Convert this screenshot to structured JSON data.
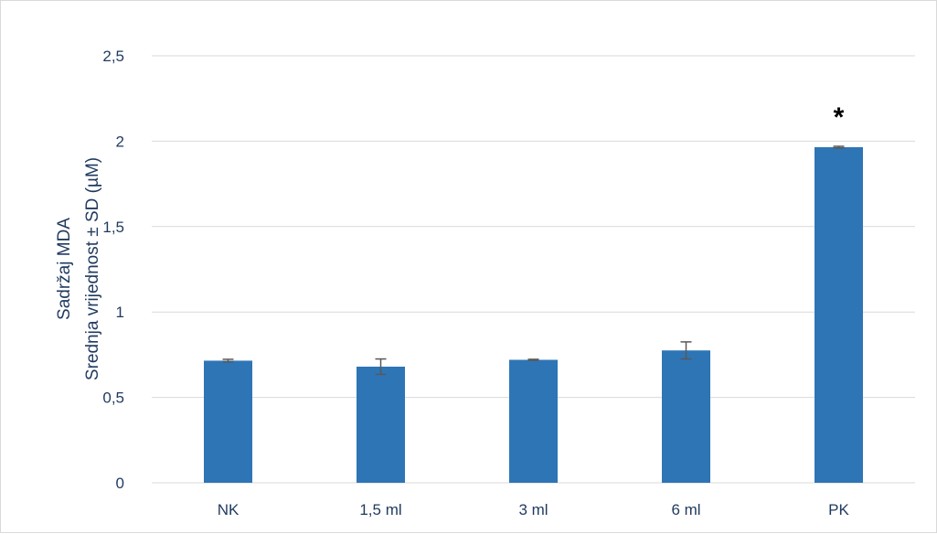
{
  "chart_data": {
    "type": "bar",
    "title": "",
    "xlabel": "",
    "ylabel_lines": [
      "Sadržaj MDA",
      "Srednja vrijednost ± SD (µM)"
    ],
    "categories": [
      "NK",
      "1,5 ml",
      "3 ml",
      "6 ml",
      "PK"
    ],
    "values": [
      0.715,
      0.68,
      0.72,
      0.775,
      1.965
    ],
    "errors": [
      0.008,
      0.045,
      0.003,
      0.05,
      0.005
    ],
    "ylim": [
      0,
      2.5
    ],
    "yticks": [
      0,
      0.5,
      1,
      1.5,
      2,
      2.5
    ],
    "ytick_labels": [
      "0",
      "0,5",
      "1",
      "1,5",
      "2",
      "2,5"
    ],
    "grid": true,
    "legend": "none",
    "annotations": [
      {
        "category": "PK",
        "text": "*"
      }
    ],
    "colors": {
      "bar": "#2e75b6",
      "error_bar": "#595959",
      "grid": "#d9d9d9",
      "text": "#1f3a5f"
    }
  }
}
